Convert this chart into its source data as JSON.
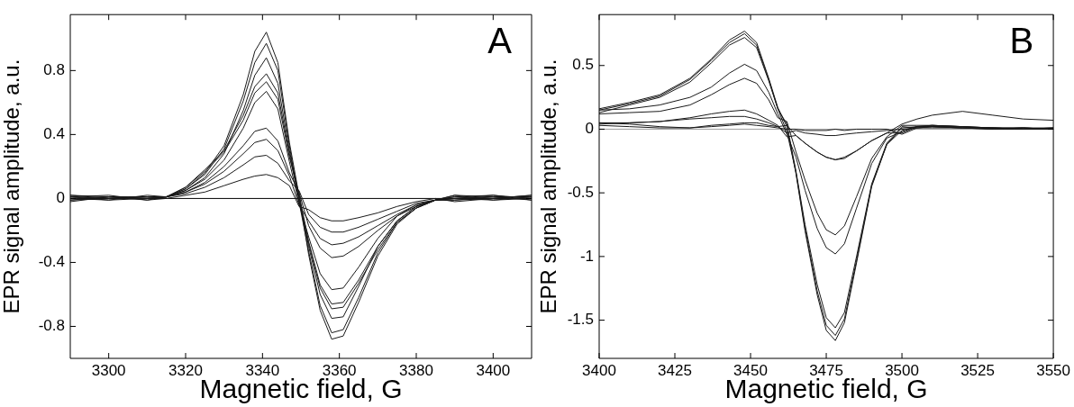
{
  "chart_data": [
    {
      "type": "line",
      "xlabel": "Magnetic field, G",
      "ylabel": "EPR signal amplitude, a.u.",
      "annotations": [
        "A"
      ],
      "xlim": [
        3290,
        3410
      ],
      "xticks": [
        3300,
        3320,
        3340,
        3360,
        3380,
        3400
      ],
      "ylim": [
        -1.0,
        1.15
      ],
      "yticks": [
        -0.8,
        -0.4,
        0,
        0.4,
        0.8
      ],
      "grid": false,
      "legend": false,
      "marker": "none",
      "line_style": "solid",
      "ref_lines": [
        {
          "axis": "y",
          "value": 0,
          "color": "#000000"
        }
      ],
      "x": [
        3290,
        3300,
        3310,
        3315,
        3320,
        3325,
        3330,
        3335,
        3338,
        3341,
        3344,
        3347,
        3349.5,
        3352,
        3355,
        3358,
        3361,
        3365,
        3370,
        3375,
        3380,
        3385,
        3390,
        3400,
        3410
      ],
      "series": [
        {
          "color": "#1a1a1a",
          "values": [
            0.01,
            0,
            0.01,
            0.01,
            0.06,
            0.16,
            0.33,
            0.65,
            0.92,
            1.04,
            0.85,
            0.35,
            0.02,
            -0.35,
            -0.7,
            -0.88,
            -0.86,
            -0.65,
            -0.36,
            -0.16,
            -0.06,
            -0.01,
            0,
            0.01,
            0.01
          ]
        },
        {
          "color": "#1a1a1a",
          "values": [
            0,
            0.01,
            0,
            0.01,
            0.06,
            0.15,
            0.31,
            0.61,
            0.85,
            0.97,
            0.8,
            0.33,
            -0.02,
            -0.33,
            -0.67,
            -0.84,
            -0.82,
            -0.62,
            -0.34,
            -0.15,
            -0.06,
            -0.01,
            0.01,
            0,
            0
          ]
        },
        {
          "color": "#1a1a1a",
          "values": [
            -0.01,
            0,
            0.01,
            0.01,
            0.05,
            0.13,
            0.28,
            0.55,
            0.77,
            0.88,
            0.72,
            0.3,
            0.01,
            -0.3,
            -0.6,
            -0.75,
            -0.74,
            -0.55,
            -0.3,
            -0.14,
            -0.05,
            -0.01,
            0,
            -0.01,
            0.01
          ]
        },
        {
          "color": "#1a1a1a",
          "values": [
            0.01,
            -0.01,
            0,
            0.01,
            0.07,
            0.18,
            0.3,
            0.52,
            0.7,
            0.78,
            0.66,
            0.28,
            -0.01,
            -0.28,
            -0.56,
            -0.69,
            -0.68,
            -0.53,
            -0.32,
            -0.15,
            -0.06,
            -0.01,
            -0.01,
            0,
            0.02
          ]
        },
        {
          "color": "#1a1a1a",
          "values": [
            0.02,
            0.01,
            0.01,
            0.01,
            0.07,
            0.17,
            0.29,
            0.49,
            0.66,
            0.73,
            0.62,
            0.26,
            0.03,
            -0.27,
            -0.54,
            -0.66,
            -0.65,
            -0.51,
            -0.3,
            -0.14,
            -0.05,
            -0.01,
            0.01,
            0.02,
            0
          ]
        },
        {
          "color": "#1a1a1a",
          "values": [
            -0.01,
            0.01,
            -0.01,
            0.01,
            0.05,
            0.12,
            0.24,
            0.44,
            0.6,
            0.67,
            0.56,
            0.23,
            -0.03,
            -0.24,
            -0.47,
            -0.57,
            -0.56,
            -0.43,
            -0.25,
            -0.11,
            -0.04,
            -0.01,
            0.02,
            0.01,
            -0.01
          ]
        },
        {
          "color": "#1a1a1a",
          "values": [
            0,
            -0.01,
            0.02,
            0.01,
            0.04,
            0.1,
            0.2,
            0.33,
            0.42,
            0.44,
            0.36,
            0.16,
            0.04,
            -0.17,
            -0.31,
            -0.37,
            -0.36,
            -0.3,
            -0.2,
            -0.11,
            -0.05,
            -0.01,
            -0.01,
            0.01,
            0.01
          ]
        },
        {
          "color": "#1a1a1a",
          "values": [
            0.02,
            0,
            0,
            0.01,
            0.04,
            0.09,
            0.17,
            0.28,
            0.35,
            0.37,
            0.3,
            0.14,
            -0.04,
            -0.14,
            -0.25,
            -0.29,
            -0.28,
            -0.24,
            -0.17,
            -0.1,
            -0.04,
            -0.01,
            0,
            0.02,
            -0.01
          ]
        },
        {
          "color": "#1a1a1a",
          "values": [
            -0.02,
            0.01,
            0.01,
            0.01,
            0.03,
            0.07,
            0.13,
            0.21,
            0.26,
            0.27,
            0.22,
            0.11,
            0.05,
            -0.1,
            -0.18,
            -0.21,
            -0.21,
            -0.18,
            -0.13,
            -0.08,
            -0.03,
            -0.01,
            0.02,
            -0.01,
            0
          ]
        },
        {
          "color": "#1a1a1a",
          "values": [
            0.01,
            0.02,
            -0.01,
            0,
            0.02,
            0.04,
            0.08,
            0.12,
            0.14,
            0.15,
            0.13,
            0.08,
            -0.05,
            -0.07,
            -0.12,
            -0.14,
            -0.14,
            -0.12,
            -0.09,
            -0.05,
            -0.02,
            0,
            -0.02,
            0,
            0.02
          ]
        }
      ]
    },
    {
      "type": "line",
      "xlabel": "Magnetic field, G",
      "ylabel": "EPR signal amplitude, a.u.",
      "annotations": [
        "B"
      ],
      "xlim": [
        3400,
        3550
      ],
      "xticks": [
        3400,
        3425,
        3450,
        3475,
        3500,
        3525,
        3550
      ],
      "ylim": [
        -1.8,
        0.9
      ],
      "yticks": [
        -1.5,
        -1,
        -0.5,
        0,
        0.5
      ],
      "grid": false,
      "legend": false,
      "marker": "none",
      "line_style": "solid",
      "ref_lines": [
        {
          "axis": "y",
          "value": 0,
          "color": "#a0a0a0"
        }
      ],
      "x": [
        3400,
        3410,
        3420,
        3430,
        3437,
        3443,
        3448,
        3452,
        3456,
        3459,
        3462,
        3465,
        3468,
        3472,
        3475,
        3478,
        3481,
        3485,
        3490,
        3495,
        3500,
        3505,
        3510,
        3520,
        3530,
        3540,
        3550
      ],
      "series": [
        {
          "color": "#1a1a1a",
          "values": [
            0.16,
            0.21,
            0.27,
            0.4,
            0.55,
            0.7,
            0.77,
            0.68,
            0.4,
            0.17,
            0.02,
            -0.35,
            -0.8,
            -1.3,
            -1.58,
            -1.66,
            -1.52,
            -1.05,
            -0.45,
            -0.12,
            0.01,
            0.02,
            0.03,
            0.02,
            0.01,
            0.01,
            0.01
          ]
        },
        {
          "color": "#1a1a1a",
          "values": [
            0.15,
            0.2,
            0.26,
            0.39,
            0.54,
            0.68,
            0.75,
            0.66,
            0.39,
            0.16,
            -0.02,
            -0.34,
            -0.78,
            -1.27,
            -1.54,
            -1.62,
            -1.49,
            -1.03,
            -0.44,
            -0.12,
            -0.01,
            0.02,
            0.03,
            0.02,
            0.01,
            0,
            0.01
          ]
        },
        {
          "color": "#1a1a1a",
          "values": [
            0.13,
            0.19,
            0.25,
            0.37,
            0.52,
            0.66,
            0.72,
            0.64,
            0.38,
            0.16,
            0.04,
            -0.33,
            -0.75,
            -1.22,
            -1.48,
            -1.56,
            -1.44,
            -1.0,
            -0.43,
            -0.11,
            0.02,
            0.01,
            0.02,
            0.02,
            0,
            0.01,
            0
          ]
        },
        {
          "color": "#1a1a1a",
          "values": [
            0.15,
            0.16,
            0.19,
            0.25,
            0.33,
            0.44,
            0.51,
            0.46,
            0.29,
            0.12,
            -0.04,
            -0.22,
            -0.48,
            -0.78,
            -0.93,
            -0.98,
            -0.9,
            -0.62,
            -0.27,
            -0.07,
            -0.02,
            0.02,
            0.02,
            0.01,
            0.01,
            0,
            0
          ]
        },
        {
          "color": "#1a1a1a",
          "values": [
            0.12,
            0.13,
            0.14,
            0.19,
            0.27,
            0.35,
            0.4,
            0.36,
            0.23,
            0.09,
            0.06,
            -0.18,
            -0.4,
            -0.66,
            -0.79,
            -0.83,
            -0.76,
            -0.53,
            -0.23,
            -0.06,
            0.03,
            0.03,
            0.03,
            0.02,
            0.01,
            0,
            0.01
          ]
        },
        {
          "color": "#1a1a1a",
          "values": [
            0.05,
            0.05,
            0.06,
            0.09,
            0.12,
            0.14,
            0.15,
            0.12,
            0.07,
            0.03,
            -0.06,
            -0.05,
            -0.11,
            -0.18,
            -0.22,
            -0.24,
            -0.22,
            -0.17,
            -0.09,
            -0.03,
            0.04,
            0.08,
            0.11,
            0.14,
            0.11,
            0.08,
            0.07
          ]
        },
        {
          "color": "#1a1a1a",
          "values": [
            0.04,
            0.05,
            0.06,
            0.08,
            0.09,
            0.1,
            0.1,
            0.08,
            0.05,
            0.02,
            0.03,
            -0.05,
            -0.11,
            -0.18,
            -0.22,
            -0.24,
            -0.23,
            -0.17,
            -0.09,
            -0.03,
            -0.03,
            0.02,
            0.02,
            0.01,
            0.01,
            0.01,
            0
          ]
        },
        {
          "color": "#1a1a1a",
          "values": [
            0.05,
            0.04,
            0.02,
            0.01,
            0.03,
            0.04,
            0.05,
            0.05,
            0.03,
            0.02,
            -0.03,
            -0.01,
            -0.03,
            -0.04,
            -0.05,
            -0.05,
            -0.04,
            -0.03,
            -0.02,
            -0.01,
            0,
            0.01,
            0.02,
            0.01,
            0,
            0.01,
            0
          ]
        },
        {
          "color": "#1a1a1a",
          "values": [
            0.03,
            0.02,
            0.01,
            0.01,
            0.02,
            0.03,
            0.04,
            0.03,
            0.02,
            0.01,
            0,
            0,
            -0.01,
            -0.01,
            -0.01,
            0,
            -0.01,
            0,
            0,
            0,
            -0.04,
            0.01,
            0.01,
            0.01,
            0,
            0,
            0
          ]
        }
      ]
    }
  ]
}
